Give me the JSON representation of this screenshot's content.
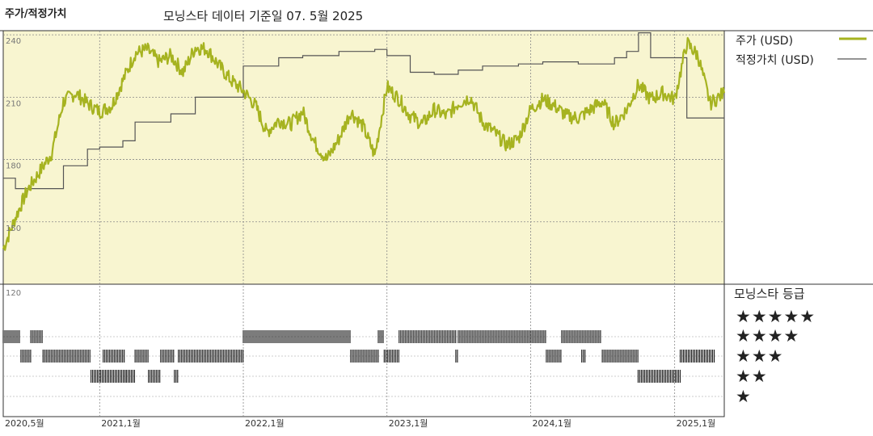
{
  "header": {
    "panel_title": "주가/적정가치",
    "subtitle": "모닝스타 데이터 기준일 07. 5월 2025"
  },
  "legend": {
    "price_label": "주가 (USD)",
    "fair_label": "적정가치 (USD)"
  },
  "rating": {
    "title": "모닝스타 등급",
    "levels": [
      "★★★★★",
      "★★★★",
      "★★★",
      "★★",
      "★"
    ]
  },
  "colors": {
    "price": "#a6b320",
    "fair": "#555555",
    "bg": "#f8f5d0",
    "grid": "#888888"
  },
  "chart_data": {
    "type": "line",
    "y_ticks": [
      120,
      150,
      180,
      210,
      240
    ],
    "ylim": [
      120,
      242
    ],
    "xlim": [
      "2020-05-01",
      "2025-05-07"
    ],
    "x_tick_labels": [
      {
        "date": "2020-05-01",
        "label": "2020,5월"
      },
      {
        "date": "2021-01-01",
        "label": "2021,1월"
      },
      {
        "date": "2022-01-01",
        "label": "2022,1월"
      },
      {
        "date": "2023-01-01",
        "label": "2023,1월"
      },
      {
        "date": "2024-01-01",
        "label": "2024,1월"
      },
      {
        "date": "2025-01-01",
        "label": "2025,1월"
      }
    ],
    "series": [
      {
        "name": "주가 (USD)",
        "x": [
          "2020-05-01",
          "2020-06-01",
          "2020-07-01",
          "2020-08-01",
          "2020-09-01",
          "2020-10-01",
          "2020-11-01",
          "2020-12-01",
          "2021-01-01",
          "2021-02-01",
          "2021-03-01",
          "2021-04-01",
          "2021-05-01",
          "2021-06-01",
          "2021-07-01",
          "2021-08-01",
          "2021-09-01",
          "2021-10-01",
          "2021-11-01",
          "2021-12-01",
          "2022-01-01",
          "2022-02-01",
          "2022-03-01",
          "2022-04-01",
          "2022-05-01",
          "2022-06-01",
          "2022-07-01",
          "2022-08-01",
          "2022-09-01",
          "2022-10-01",
          "2022-11-01",
          "2022-12-01",
          "2023-01-01",
          "2023-02-01",
          "2023-03-01",
          "2023-04-01",
          "2023-05-01",
          "2023-06-01",
          "2023-07-01",
          "2023-08-01",
          "2023-09-01",
          "2023-10-01",
          "2023-11-01",
          "2023-12-01",
          "2024-01-01",
          "2024-02-01",
          "2024-03-01",
          "2024-04-01",
          "2024-05-01",
          "2024-06-01",
          "2024-07-01",
          "2024-08-01",
          "2024-09-01",
          "2024-10-01",
          "2024-11-01",
          "2024-12-01",
          "2025-01-01",
          "2025-02-01",
          "2025-03-01",
          "2025-04-01",
          "2025-05-07"
        ],
        "values": [
          137,
          152,
          165,
          174,
          183,
          208,
          212,
          207,
          203,
          206,
          218,
          231,
          233,
          227,
          230,
          222,
          234,
          233,
          225,
          218,
          213,
          206,
          193,
          199,
          197,
          203,
          188,
          180,
          190,
          203,
          196,
          182,
          215,
          209,
          201,
          197,
          204,
          201,
          207,
          210,
          198,
          193,
          187,
          190,
          204,
          209,
          206,
          201,
          200,
          204,
          208,
          197,
          204,
          216,
          209,
          212,
          209,
          236,
          230,
          207,
          212
        ]
      },
      {
        "name": "적정가치 (USD)",
        "x": [
          "2020-05-01",
          "2020-06-01",
          "2020-09-01",
          "2020-10-01",
          "2020-12-01",
          "2021-01-01",
          "2021-03-01",
          "2021-04-01",
          "2021-07-01",
          "2021-09-01",
          "2022-01-01",
          "2022-04-01",
          "2022-06-01",
          "2022-09-01",
          "2022-12-01",
          "2023-01-01",
          "2023-03-01",
          "2023-05-01",
          "2023-07-01",
          "2023-09-01",
          "2023-12-01",
          "2024-02-01",
          "2024-05-01",
          "2024-08-01",
          "2024-09-01",
          "2024-10-01",
          "2024-11-01",
          "2025-02-01",
          "2025-05-07"
        ],
        "values": [
          171,
          166,
          166,
          177,
          185,
          186,
          189,
          198,
          202,
          210,
          225,
          229,
          230,
          232,
          233,
          230,
          222,
          221,
          223,
          225,
          226,
          227,
          226,
          229,
          232,
          241,
          229,
          200,
          203
        ]
      }
    ],
    "rating_periods": [
      {
        "stars": 5,
        "ranges": [
          [
            "2020-05-01",
            "2020-06-15"
          ],
          [
            "2020-07-10",
            "2020-08-10"
          ],
          [
            "2022-01-01",
            "2022-09-30"
          ],
          [
            "2022-12-10",
            "2022-12-25"
          ],
          [
            "2023-02-01",
            "2023-06-25"
          ],
          [
            "2023-07-01",
            "2024-02-10"
          ],
          [
            "2024-03-20",
            "2024-06-30"
          ]
        ]
      },
      {
        "stars": 4,
        "ranges": [
          [
            "2020-06-15",
            "2020-07-10"
          ],
          [
            "2020-08-10",
            "2020-12-10"
          ],
          [
            "2021-01-10",
            "2021-03-05"
          ],
          [
            "2021-04-01",
            "2021-05-05"
          ],
          [
            "2021-06-05",
            "2021-07-10"
          ],
          [
            "2021-07-20",
            "2022-01-01"
          ],
          [
            "2022-10-01",
            "2022-12-10"
          ],
          [
            "2022-12-25",
            "2023-02-01"
          ],
          [
            "2023-06-25",
            "2023-07-01"
          ],
          [
            "2024-02-10",
            "2024-03-20"
          ],
          [
            "2024-05-10",
            "2024-05-20"
          ],
          [
            "2024-07-01",
            "2024-09-30"
          ],
          [
            "2025-01-15",
            "2025-04-15"
          ]
        ]
      },
      {
        "stars": 3,
        "ranges": [
          [
            "2020-12-10",
            "2021-03-10"
          ],
          [
            "2021-03-10",
            "2021-04-01"
          ],
          [
            "2021-05-05",
            "2021-06-05"
          ],
          [
            "2021-07-10",
            "2021-07-20"
          ],
          [
            "2024-09-30",
            "2025-01-15"
          ]
        ]
      }
    ]
  }
}
